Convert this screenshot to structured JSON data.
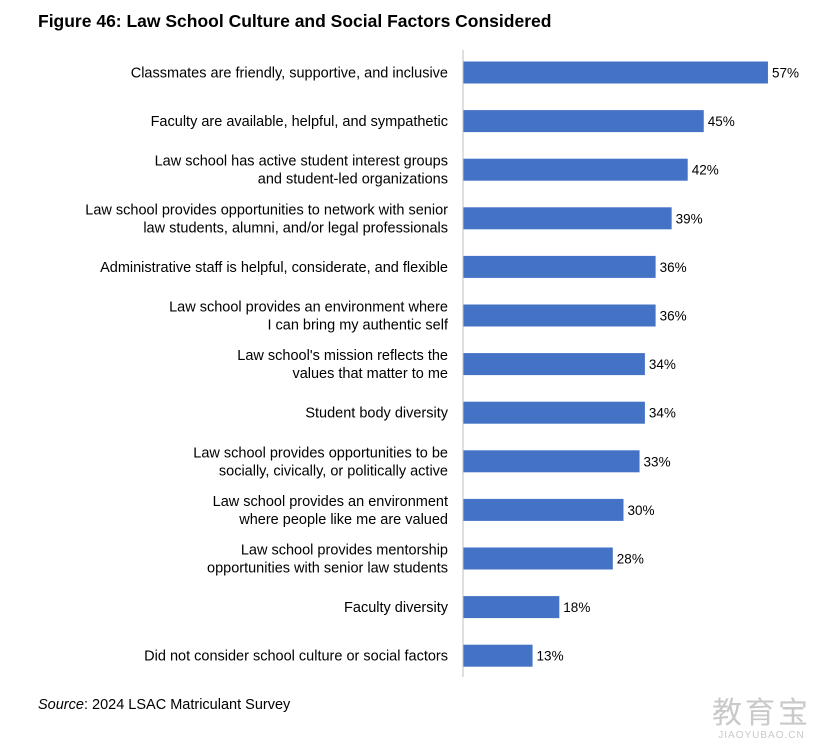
{
  "chart_data": {
    "type": "bar",
    "orientation": "horizontal",
    "title": "Figure 46: Law School Culture and Social Factors Considered",
    "value_suffix": "%",
    "categories": [
      [
        "Classmates are friendly, supportive, and inclusive"
      ],
      [
        "Faculty are available, helpful, and sympathetic"
      ],
      [
        "Law school has active student interest groups",
        "and student-led organizations"
      ],
      [
        "Law school provides opportunities to network with senior",
        "law students, alumni, and/or legal professionals"
      ],
      [
        "Administrative staff is helpful, considerate, and flexible"
      ],
      [
        "Law school provides an environment where",
        "I can bring my authentic self"
      ],
      [
        "Law school's mission reflects the",
        "values that matter to me"
      ],
      [
        "Student body diversity"
      ],
      [
        "Law school provides opportunities to be",
        "socially, civically, or politically active"
      ],
      [
        "Law school provides an environment",
        "where people like me are valued"
      ],
      [
        "Law school provides mentorship",
        "opportunities with senior law students"
      ],
      [
        "Faculty diversity"
      ],
      [
        "Did not consider school culture or social factors"
      ]
    ],
    "values": [
      57,
      45,
      42,
      39,
      36,
      36,
      34,
      34,
      33,
      30,
      28,
      18,
      13
    ],
    "xlim": [
      0,
      60
    ],
    "grid": false,
    "legend": "none",
    "bar_color": "#4472C4"
  },
  "source": {
    "label": "Source",
    "text": ": 2024 LSAC Matriculant Survey"
  },
  "watermark": {
    "big": "教育宝",
    "small": "JIAOYUBAO.CN"
  }
}
